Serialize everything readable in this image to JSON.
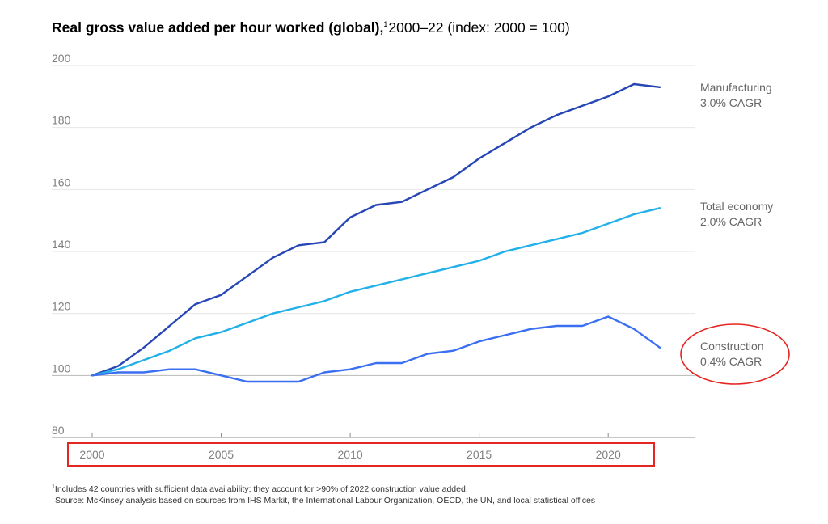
{
  "title": {
    "main": "Real gross value added per hour worked (global),",
    "footnote_marker": "1",
    "rest": "2000–22 (index: 2000 = 100)"
  },
  "chart_data": {
    "type": "line",
    "x": [
      2000,
      2001,
      2002,
      2003,
      2004,
      2005,
      2006,
      2007,
      2008,
      2009,
      2010,
      2011,
      2012,
      2013,
      2014,
      2015,
      2016,
      2017,
      2018,
      2019,
      2020,
      2021,
      2022
    ],
    "xticks": [
      2000,
      2005,
      2010,
      2015,
      2020
    ],
    "yticks": [
      80,
      100,
      120,
      140,
      160,
      180,
      200
    ],
    "xlim": [
      2000,
      2022
    ],
    "ylim": [
      80,
      200
    ],
    "grid": true,
    "series": [
      {
        "name": "Manufacturing",
        "label": "3.0% CAGR",
        "color": "#2746b5",
        "values": [
          100,
          103,
          109,
          116,
          123,
          126,
          132,
          138,
          142,
          143,
          151,
          155,
          156,
          160,
          164,
          170,
          175,
          180,
          184,
          187,
          190,
          194,
          193
        ]
      },
      {
        "name": "Total economy",
        "label": "2.0% CAGR",
        "color": "#21b0ea",
        "values": [
          100,
          102,
          105,
          108,
          112,
          114,
          117,
          120,
          122,
          124,
          127,
          129,
          131,
          133,
          135,
          137,
          140,
          142,
          144,
          146,
          149,
          152,
          154
        ]
      },
      {
        "name": "Construction",
        "label": "0.4% CAGR",
        "color": "#3b6ff2",
        "values": [
          100,
          101,
          101,
          102,
          102,
          100,
          98,
          98,
          98,
          101,
          102,
          104,
          104,
          107,
          108,
          111,
          113,
          115,
          116,
          116,
          119,
          115,
          109
        ]
      }
    ],
    "annotations": [
      {
        "type": "ellipse",
        "target": "Construction",
        "color": "#e52521"
      },
      {
        "type": "rectangle",
        "target": "x-axis-labels",
        "color": "#e52521"
      }
    ]
  },
  "footnote": {
    "marker": "1",
    "line1": "Includes 42 countries with sufficient data availability; they account for >90% of 2022 construction value added.",
    "line2": "Source: McKinsey analysis based on sources from IHS Markit, the International Labour Organization, OECD, the UN, and local statistical offices"
  }
}
